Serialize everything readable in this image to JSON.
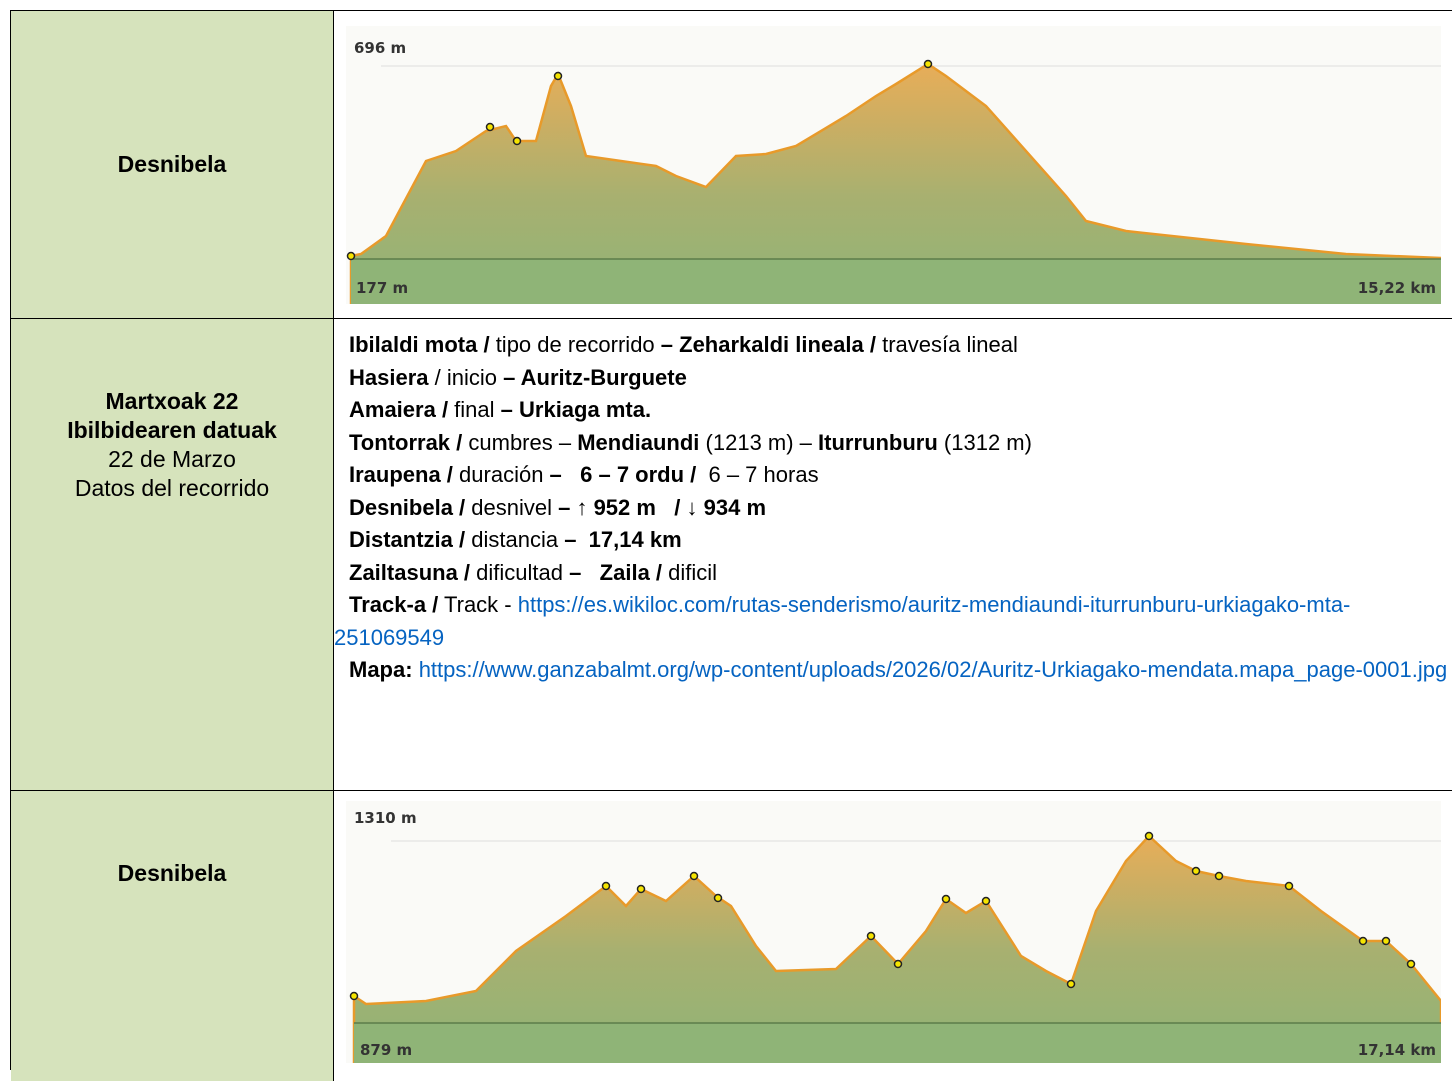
{
  "rows": [
    {
      "left": "Desnibela",
      "profile": {
        "top_label": "696 m",
        "bottom_left": "177 m",
        "bottom_right": "15,22 km"
      }
    },
    {
      "left": [
        {
          "text": "Martxoak 22",
          "bold": true
        },
        {
          "text": "Ibilbidearen datuak",
          "bold": true
        },
        {
          "text": "22 de Marzo",
          "bold": false
        },
        {
          "text": "Datos del recorrido",
          "bold": false
        }
      ],
      "right": [
        [
          {
            "text": "Ibilaldi mota /",
            "bold": true
          },
          {
            "text": " tipo de recorrido ",
            "bold": false
          },
          {
            "text": "– Zeharkaldi lineala /",
            "bold": true
          },
          {
            "text": " travesía lineal",
            "bold": false
          }
        ],
        [
          {
            "text": "Hasiera",
            "bold": true
          },
          {
            "text": " / inicio ",
            "bold": false
          },
          {
            "text": "– Auritz-Burguete",
            "bold": true
          }
        ],
        [
          {
            "text": "Amaiera /",
            "bold": true
          },
          {
            "text": " final ",
            "bold": false
          },
          {
            "text": "– Urkiaga mta.",
            "bold": true
          }
        ],
        [
          {
            "text": "Tontorrak /",
            "bold": true
          },
          {
            "text": " cumbres – ",
            "bold": false
          },
          {
            "text": "Mendiaundi",
            "bold": true
          },
          {
            "text": " (1213 m) – ",
            "bold": false
          },
          {
            "text": "Iturrunburu",
            "bold": true
          },
          {
            "text": " (1312 m)",
            "bold": false
          }
        ],
        [
          {
            "text": "Iraupena /",
            "bold": true
          },
          {
            "text": " duración ",
            "bold": false
          },
          {
            "text": "–   6 – 7 ordu /",
            "bold": true
          },
          {
            "text": "  6 – 7 horas",
            "bold": false
          }
        ],
        [
          {
            "text": "Desnibela /",
            "bold": true
          },
          {
            "text": " desnivel ",
            "bold": false
          },
          {
            "text": "– ↑ 952 m   / ↓ 934 m",
            "bold": true
          }
        ],
        [
          {
            "text": "Distantzia /",
            "bold": true
          },
          {
            "text": " distancia ",
            "bold": false
          },
          {
            "text": "–  17,14 km",
            "bold": true
          }
        ],
        [
          {
            "text": "Zailtasuna /",
            "bold": true
          },
          {
            "text": " dificultad ",
            "bold": false
          },
          {
            "text": "–   Zaila /",
            "bold": true
          },
          {
            "text": " dificil",
            "bold": false
          }
        ],
        [
          {
            "text": "Track-a /",
            "bold": true
          },
          {
            "text": " Track - ",
            "bold": false
          },
          {
            "text": "https://es.wikiloc.com/rutas-senderismo/auritz-mendiaundi-iturrunburu-urkiagako-mta-251069549",
            "link": true
          }
        ],
        [
          {
            "text": "Mapa:",
            "bold": true
          },
          {
            "text": " ",
            "bold": false
          },
          {
            "text": "https://www.ganzabalmt.org/wp-content/uploads/2026/02/Auritz-Urkiagako-mendata.mapa_page-0001.jpg",
            "link": true
          }
        ]
      ]
    },
    {
      "left": "Desnibela",
      "profile": {
        "top_label": "1310 m",
        "bottom_left": "879 m",
        "bottom_right": "17,14 km"
      }
    }
  ]
}
